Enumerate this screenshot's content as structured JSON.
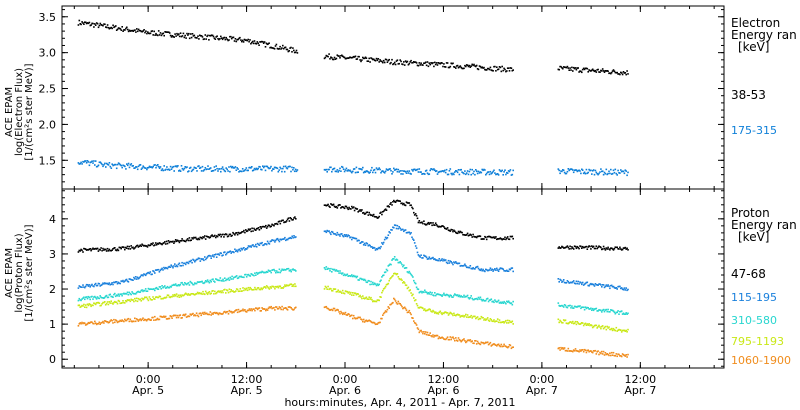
{
  "chart_data": [
    {
      "panel": "electron",
      "type": "scatter",
      "ylabel_lines": [
        "ACE EPAM",
        "log(Electron Flux)",
        "[1/(cm²s ster MeV)]"
      ],
      "ylim": [
        1.1,
        3.65
      ],
      "yticks": [
        "1.5",
        "2.0",
        "2.5",
        "3.0",
        "3.5"
      ],
      "ytick_values": [
        1.5,
        2.0,
        2.5,
        3.0,
        3.5
      ],
      "legend_title_lines": [
        "Electron",
        "Energy ran",
        "[keV]"
      ],
      "series": [
        {
          "name": "38-53",
          "color": "#000000",
          "segments": [
            {
              "x": [
                -8.5,
                0,
                12,
                18.2
              ],
              "y": [
                3.42,
                3.28,
                3.17,
                3.02
              ]
            },
            {
              "x": [
                21.5,
                30,
                40,
                44.5
              ],
              "y": [
                2.95,
                2.87,
                2.8,
                2.76
              ]
            },
            {
              "x": [
                50,
                58.5
              ],
              "y": [
                2.78,
                2.72
              ]
            }
          ]
        },
        {
          "name": "175-315",
          "color": "#0d7fd8",
          "segments": [
            {
              "x": [
                -8.5,
                -5,
                5,
                18.2
              ],
              "y": [
                1.48,
                1.43,
                1.38,
                1.38
              ]
            },
            {
              "x": [
                21.5,
                30,
                44.5
              ],
              "y": [
                1.38,
                1.35,
                1.33
              ]
            },
            {
              "x": [
                50,
                58.5
              ],
              "y": [
                1.35,
                1.33
              ]
            }
          ]
        }
      ]
    },
    {
      "panel": "proton",
      "type": "scatter",
      "ylabel_lines": [
        "ACE EPAM",
        "log(Proton Flux)",
        "[1/(cm²s ster MeV)]"
      ],
      "ylim": [
        -0.25,
        4.85
      ],
      "yticks": [
        "0",
        "1",
        "2",
        "3",
        "4"
      ],
      "ytick_values": [
        0,
        1,
        2,
        3,
        4
      ],
      "legend_title_lines": [
        "Proton",
        "Energy ran",
        "[keV]"
      ],
      "series": [
        {
          "name": "47-68",
          "color": "#000000",
          "segments": [
            {
              "x": [
                -8.5,
                -3,
                3,
                10,
                15,
                18
              ],
              "y": [
                3.1,
                3.15,
                3.35,
                3.55,
                3.8,
                4.05
              ]
            },
            {
              "x": [
                21.5,
                25,
                28,
                30,
                32,
                33,
                35,
                38,
                41,
                44.5
              ],
              "y": [
                4.4,
                4.3,
                4.05,
                4.5,
                4.4,
                3.9,
                3.85,
                3.6,
                3.45,
                3.45
              ]
            },
            {
              "x": [
                50,
                58.5
              ],
              "y": [
                3.2,
                3.15
              ]
            }
          ]
        },
        {
          "name": "115-195",
          "color": "#1a80dc",
          "segments": [
            {
              "x": [
                -8.5,
                -3,
                3,
                10,
                15,
                18
              ],
              "y": [
                2.05,
                2.2,
                2.65,
                3.05,
                3.35,
                3.5
              ]
            },
            {
              "x": [
                21.5,
                25,
                28,
                30,
                32,
                33,
                35,
                38,
                41,
                44.5
              ],
              "y": [
                3.65,
                3.45,
                3.1,
                3.8,
                3.6,
                2.95,
                2.85,
                2.7,
                2.55,
                2.55
              ]
            },
            {
              "x": [
                50,
                58.5
              ],
              "y": [
                2.25,
                2.0
              ]
            }
          ]
        },
        {
          "name": "310-580",
          "color": "#27d6cf",
          "segments": [
            {
              "x": [
                -8.5,
                -3,
                3,
                10,
                15,
                18
              ],
              "y": [
                1.7,
                1.85,
                2.1,
                2.3,
                2.5,
                2.55
              ]
            },
            {
              "x": [
                21.5,
                25,
                28,
                30,
                32,
                33,
                35,
                38,
                41,
                44.5
              ],
              "y": [
                2.6,
                2.35,
                2.1,
                2.9,
                2.45,
                1.95,
                1.85,
                1.8,
                1.7,
                1.6
              ]
            },
            {
              "x": [
                50,
                58.5
              ],
              "y": [
                1.55,
                1.3
              ]
            }
          ]
        },
        {
          "name": "795-1193",
          "color": "#c9e816",
          "segments": [
            {
              "x": [
                -8.5,
                -3,
                3,
                10,
                15,
                18
              ],
              "y": [
                1.5,
                1.65,
                1.8,
                1.95,
                2.05,
                2.1
              ]
            },
            {
              "x": [
                21.5,
                25,
                28,
                30,
                32,
                33,
                35,
                38,
                41,
                44.5
              ],
              "y": [
                2.05,
                1.85,
                1.65,
                2.5,
                1.95,
                1.45,
                1.35,
                1.25,
                1.15,
                1.05
              ]
            },
            {
              "x": [
                50,
                58.5
              ],
              "y": [
                1.1,
                0.8
              ]
            }
          ]
        },
        {
          "name": "1060-1900",
          "color": "#f08c1c",
          "segments": [
            {
              "x": [
                -8.5,
                -3,
                3,
                10,
                15,
                18
              ],
              "y": [
                1.0,
                1.1,
                1.2,
                1.35,
                1.45,
                1.45
              ]
            },
            {
              "x": [
                21.5,
                25,
                28,
                30,
                32,
                33,
                35,
                38,
                41,
                44.5
              ],
              "y": [
                1.5,
                1.2,
                1.0,
                1.7,
                1.3,
                0.8,
                0.65,
                0.55,
                0.45,
                0.35
              ]
            },
            {
              "x": [
                50,
                58.5
              ],
              "y": [
                0.3,
                0.1
              ]
            }
          ]
        }
      ]
    }
  ],
  "xaxis": {
    "xlim": [
      -10.5,
      70.2
    ],
    "ticks": [
      {
        "x": 0,
        "time": "0:00",
        "date": "Apr. 5"
      },
      {
        "x": 12,
        "time": "12:00",
        "date": "Apr. 5"
      },
      {
        "x": 24,
        "time": "0:00",
        "date": "Apr. 6"
      },
      {
        "x": 36,
        "time": "12:00",
        "date": "Apr. 6"
      },
      {
        "x": 48,
        "time": "0:00",
        "date": "Apr. 7"
      },
      {
        "x": 60,
        "time": "12:00",
        "date": "Apr. 7"
      }
    ],
    "label": "hours:minutes, Apr.  4, 2011 - Apr.  7, 2011"
  }
}
